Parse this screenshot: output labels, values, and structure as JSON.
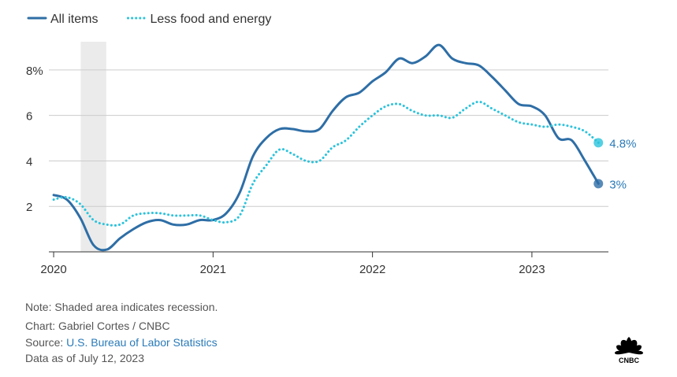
{
  "chart_data": {
    "type": "line",
    "title": "",
    "xlabel": "",
    "ylabel": "",
    "x_ticks": [
      "2020",
      "2021",
      "2022",
      "2023"
    ],
    "y_ticks": [
      2,
      4,
      6,
      8
    ],
    "y_tick_labels": [
      "2",
      "4",
      "6",
      "8%"
    ],
    "ylim": [
      0,
      9
    ],
    "xlim": [
      2019.97,
      2023.48
    ],
    "grid": "horizontal",
    "legend_position": "top-left",
    "recession_shade": {
      "start": 2020.17,
      "end": 2020.33
    },
    "series": [
      {
        "name": "All items",
        "color": "#2e6ea6",
        "style": "solid",
        "end_label": "3%",
        "x": [
          2020.0,
          2020.083,
          2020.167,
          2020.25,
          2020.333,
          2020.417,
          2020.5,
          2020.583,
          2020.667,
          2020.75,
          2020.833,
          2020.917,
          2021.0,
          2021.083,
          2021.167,
          2021.25,
          2021.333,
          2021.417,
          2021.5,
          2021.583,
          2021.667,
          2021.75,
          2021.833,
          2021.917,
          2022.0,
          2022.083,
          2022.167,
          2022.25,
          2022.333,
          2022.417,
          2022.5,
          2022.583,
          2022.667,
          2022.75,
          2022.833,
          2022.917,
          2023.0,
          2023.083,
          2023.167,
          2023.25,
          2023.333,
          2023.417
        ],
        "values": [
          2.5,
          2.3,
          1.5,
          0.3,
          0.1,
          0.6,
          1.0,
          1.3,
          1.4,
          1.2,
          1.2,
          1.4,
          1.4,
          1.7,
          2.6,
          4.2,
          5.0,
          5.4,
          5.4,
          5.3,
          5.4,
          6.2,
          6.8,
          7.0,
          7.5,
          7.9,
          8.5,
          8.3,
          8.6,
          9.1,
          8.5,
          8.3,
          8.2,
          7.7,
          7.1,
          6.5,
          6.4,
          6.0,
          5.0,
          4.9,
          4.0,
          3.0
        ]
      },
      {
        "name": "Less food and energy",
        "color": "#2bc3dc",
        "style": "dotted",
        "end_label": "4.8%",
        "x": [
          2020.0,
          2020.083,
          2020.167,
          2020.25,
          2020.333,
          2020.417,
          2020.5,
          2020.583,
          2020.667,
          2020.75,
          2020.833,
          2020.917,
          2021.0,
          2021.083,
          2021.167,
          2021.25,
          2021.333,
          2021.417,
          2021.5,
          2021.583,
          2021.667,
          2021.75,
          2021.833,
          2021.917,
          2022.0,
          2022.083,
          2022.167,
          2022.25,
          2022.333,
          2022.417,
          2022.5,
          2022.583,
          2022.667,
          2022.75,
          2022.833,
          2022.917,
          2023.0,
          2023.083,
          2023.167,
          2023.25,
          2023.333,
          2023.417
        ],
        "values": [
          2.3,
          2.4,
          2.1,
          1.4,
          1.2,
          1.2,
          1.6,
          1.7,
          1.7,
          1.6,
          1.6,
          1.6,
          1.4,
          1.3,
          1.6,
          3.0,
          3.8,
          4.5,
          4.3,
          4.0,
          4.0,
          4.6,
          4.9,
          5.5,
          6.0,
          6.4,
          6.5,
          6.2,
          6.0,
          6.0,
          5.9,
          6.3,
          6.6,
          6.3,
          6.0,
          5.7,
          5.6,
          5.5,
          5.6,
          5.5,
          5.3,
          4.8
        ]
      }
    ]
  },
  "notes": {
    "recession": "Note: Shaded area indicates recession.",
    "chart_credit": "Chart: Gabriel Cortes / CNBC",
    "source_prefix": "Source: ",
    "source_link": "U.S. Bureau of Labor Statistics",
    "data_as_of": "Data as of July 12, 2023"
  },
  "logo": {
    "text": "CNBC",
    "icon": "peacock-icon"
  }
}
